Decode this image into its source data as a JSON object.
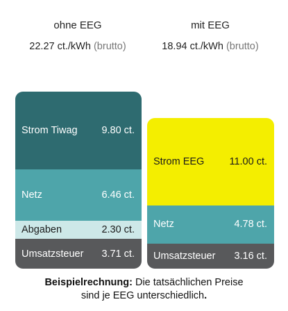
{
  "chart_data": {
    "type": "bar",
    "stacked": true,
    "columns": [
      {
        "title": "ohne EEG",
        "price": "22.27 ct./kWh",
        "price_suffix": "(brutto)",
        "segments": [
          {
            "label": "Umsatzsteuer",
            "value": 3.71,
            "value_text": "3.71 ct.",
            "color": "#58595b",
            "text_color": "#ffffff"
          },
          {
            "label": "Abgaben",
            "value": 2.3,
            "value_text": "2.30 ct.",
            "color": "#cde8e8",
            "text_color": "#1a1a1a"
          },
          {
            "label": "Netz",
            "value": 6.46,
            "value_text": "6.46 ct.",
            "color": "#4ea5aa",
            "text_color": "#ffffff"
          },
          {
            "label": "Strom Tiwag",
            "value": 9.8,
            "value_text": "9.80 ct.",
            "color": "#2e6b70",
            "text_color": "#ffffff"
          }
        ]
      },
      {
        "title": "mit EEG",
        "price": "18.94 ct./kWh",
        "price_suffix": "(brutto)",
        "segments": [
          {
            "label": "Umsatzsteuer",
            "value": 3.16,
            "value_text": "3.16 ct.",
            "color": "#58595b",
            "text_color": "#ffffff"
          },
          {
            "label": "Netz",
            "value": 4.78,
            "value_text": "4.78 ct.",
            "color": "#4ea5aa",
            "text_color": "#ffffff"
          },
          {
            "label": "Strom EEG",
            "value": 11.0,
            "value_text": "11.00 ct.",
            "color": "#f4ee00",
            "text_color": "#1a1a1a"
          }
        ]
      }
    ]
  },
  "caption": {
    "bold": "Beispielrechnung:",
    "line1": "Die tatsächlichen Preise",
    "line2": "sind je EEG unterschiedlich",
    "line2_end": "."
  }
}
